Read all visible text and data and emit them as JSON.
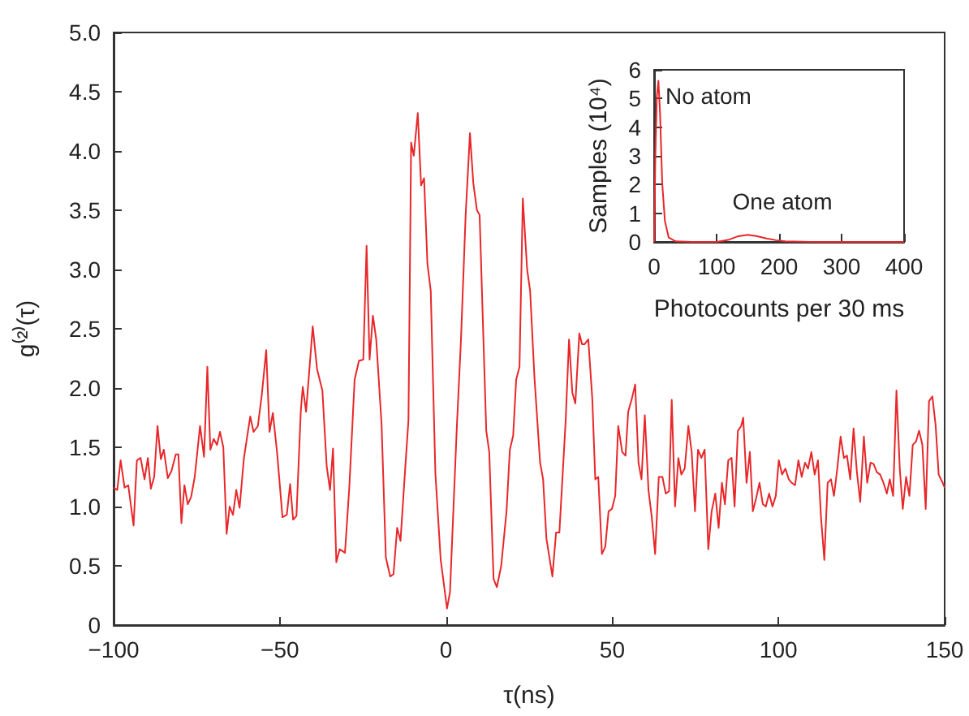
{
  "chart_data": [
    {
      "type": "line",
      "xlabel": "τ(ns)",
      "ylabel": "g⁽²⁾(τ)",
      "x": [
        -100,
        -98.9,
        -97.9,
        -96.7,
        -95.6,
        -94,
        -93,
        -91.9,
        -90.7,
        -89.7,
        -88.8,
        -87.8,
        -86.8,
        -85.8,
        -84.9,
        -83.7,
        -82.6,
        -81.3,
        -80.5,
        -79.6,
        -78.7,
        -77.7,
        -76.7,
        -75.6,
        -74,
        -72.8,
        -71.8,
        -70.9,
        -69.9,
        -68.9,
        -68,
        -67,
        -66,
        -65.1,
        -64.1,
        -63.1,
        -62.1,
        -60.8,
        -58.9,
        -57.9,
        -56.6,
        -55.4,
        -54.1,
        -53.1,
        -52.1,
        -50.8,
        -49.2,
        -47.9,
        -46.9,
        -46,
        -45,
        -43.7,
        -43.1,
        -42.1,
        -40.1,
        -38.8,
        -37.2,
        -35.9,
        -34.9,
        -34,
        -33,
        -32,
        -30.4,
        -29.1,
        -27.5,
        -26.2,
        -24.9,
        -23.9,
        -23,
        -22,
        -21,
        -19.4,
        -18.1,
        -16.8,
        -15.8,
        -14.7,
        -13.7,
        -12.4,
        -11.3,
        -10.5,
        -9.7,
        -8.5,
        -7.5,
        -6.6,
        -5.6,
        -4.6,
        -3.2,
        -1.6,
        0.3,
        1.2,
        3.2,
        4.5,
        5.9,
        7.2,
        8.2,
        9.3,
        10.1,
        12.1,
        13,
        14.3,
        15.3,
        16.6,
        18.2,
        19.2,
        20.2,
        21.1,
        22.1,
        23.1,
        24.4,
        25.3,
        26.6,
        28.3,
        29.2,
        30.2,
        32,
        33.1,
        34.1,
        35.1,
        36,
        37,
        38,
        38.9,
        40.1,
        40.9,
        41.7,
        42.8,
        44,
        44.9,
        45.8,
        46.9,
        47.9,
        48.9,
        49.9,
        50.9,
        51.8,
        53,
        54,
        54.8,
        55.9,
        56.9,
        57.9,
        58.8,
        59.8,
        60.9,
        61.9,
        62.9,
        64,
        65.1,
        66.1,
        67.1,
        67.9,
        68.9,
        69.9,
        70.8,
        71.8,
        72.9,
        73.9,
        74.9,
        75.8,
        76.8,
        77.8,
        78.9,
        79.9,
        81,
        82,
        83,
        83.9,
        84.9,
        85.9,
        86.8,
        87.8,
        88.8,
        89.4,
        90.4,
        91.4,
        92.3,
        93.3,
        94.3,
        95.3,
        96.2,
        97.2,
        98.2,
        99.2,
        100.1,
        101.1,
        102.1,
        103.1,
        104,
        105,
        106,
        107,
        108,
        108.9,
        109.9,
        110.9,
        111.9,
        112.8,
        113.8,
        114.8,
        115.8,
        116.7,
        117.7,
        118.7,
        119.7,
        120.6,
        121.6,
        122.6,
        123.6,
        124.6,
        125.7,
        126.7,
        127.7,
        128.6,
        129.6,
        130.6,
        131.6,
        132.6,
        133.5,
        134.5,
        135.5,
        136.5,
        137.4,
        138.4,
        139.4,
        140.4,
        141.4,
        142.3,
        143.3,
        144.3,
        145.3,
        146.3,
        147.3,
        148.2,
        149.4,
        150
      ],
      "series": [
        {
          "color": "#e8272a",
          "values": [
            1.16,
            1.14,
            1.39,
            1.16,
            1.18,
            0.84,
            1.39,
            1.41,
            1.23,
            1.41,
            1.15,
            1.25,
            1.68,
            1.4,
            1.48,
            1.24,
            1.3,
            1.44,
            1.44,
            0.86,
            1.18,
            1.02,
            1.08,
            1.25,
            1.68,
            1.42,
            2.18,
            1.48,
            1.57,
            1.52,
            1.63,
            1.5,
            0.77,
            1,
            0.93,
            1.14,
            0.99,
            1.41,
            1.76,
            1.63,
            1.68,
            1.95,
            2.32,
            1.63,
            1.79,
            1.45,
            0.91,
            0.93,
            1.19,
            0.89,
            0.92,
            1.8,
            2.01,
            1.8,
            2.52,
            2.16,
            1.98,
            1.34,
            1.14,
            1.49,
            0.53,
            0.64,
            0.61,
            1.16,
            2.07,
            2.23,
            2.24,
            3.2,
            2.24,
            2.61,
            2.41,
            1.7,
            0.57,
            0.41,
            0.43,
            0.82,
            0.71,
            1.27,
            1.73,
            4.07,
            3.96,
            4.32,
            3.71,
            3.77,
            3.05,
            2.82,
            1.28,
            0.55,
            0.14,
            0.28,
            1.64,
            2.41,
            3.46,
            4.15,
            3.73,
            3.5,
            3.46,
            1.64,
            1.46,
            0.39,
            0.32,
            0.5,
            0.96,
            1.48,
            1.6,
            2.07,
            2.18,
            3.6,
            3,
            2.82,
            2.09,
            1.37,
            1.23,
            0.73,
            0.41,
            0.78,
            0.78,
            1.28,
            1.73,
            2.41,
            1.96,
            1.87,
            2.46,
            2.37,
            2.37,
            2.41,
            1.91,
            1.23,
            1.25,
            0.6,
            0.66,
            0.96,
            0.98,
            1.09,
            1.68,
            1.46,
            1.43,
            1.8,
            1.91,
            2.03,
            1.37,
            1.23,
            1.77,
            1.14,
            0.91,
            0.6,
            1.25,
            1.25,
            1.11,
            1.13,
            1.9,
            1,
            1.41,
            1.27,
            1.32,
            1.68,
            1.46,
            0.96,
            1.48,
            1.41,
            1.48,
            0.64,
            0.96,
            1.11,
            0.82,
            1.2,
            1.02,
            1.39,
            1.41,
            1,
            1.64,
            1.68,
            1.75,
            1.2,
            1.46,
            0.96,
            1.07,
            1.2,
            1.02,
            1,
            1.11,
            1,
            1.09,
            1.39,
            1.27,
            1.32,
            1.23,
            1.2,
            1.18,
            1.39,
            1.25,
            1.37,
            1.32,
            1.46,
            1.27,
            1.39,
            0.91,
            0.55,
            1.2,
            1.23,
            1.09,
            1.32,
            1.59,
            1.41,
            1.43,
            1.23,
            1.66,
            1.29,
            1.04,
            1.59,
            1.2,
            1.37,
            1.36,
            1.29,
            1.27,
            1.2,
            1.11,
            1.23,
            1.09,
            1.98,
            1.32,
            0.98,
            1.25,
            1.09,
            1.52,
            1.55,
            1.64,
            1.52,
            0.98,
            1.89,
            1.93,
            1.68,
            1.27,
            1.2,
            1.16
          ]
        }
      ],
      "xlim": [
        -100,
        150
      ],
      "xticks": [
        {
          "value": -100,
          "label": "−100"
        },
        {
          "value": -50,
          "label": "−50"
        },
        0,
        50,
        100,
        150
      ],
      "ylim": [
        0,
        5
      ],
      "yticks": [
        0,
        0.5,
        {
          "value": 1,
          "label": "1.0"
        },
        1.5,
        {
          "value": 2,
          "label": "2.0"
        },
        2.5,
        {
          "value": 3,
          "label": "3.0"
        },
        3.5,
        {
          "value": 4,
          "label": "4.0"
        },
        4.5,
        {
          "value": 5,
          "label": "5.0"
        }
      ]
    },
    {
      "type": "line",
      "xlabel": "Photocounts per 30 ms",
      "ylabel": "Samples (10⁴)",
      "x": [
        0,
        2,
        4.3,
        6.9,
        9.5,
        13,
        17.3,
        23.4,
        34.6,
        60,
        100,
        120,
        135,
        150,
        165,
        180,
        195,
        210,
        250,
        300,
        400
      ],
      "series": [
        {
          "color": "#e8272a",
          "values": [
            0,
            3,
            5.06,
            5.62,
            4.49,
            2.04,
            0.72,
            0.15,
            0.02,
            0,
            0,
            0.08,
            0.2,
            0.25,
            0.2,
            0.12,
            0.06,
            0.02,
            0,
            0,
            0
          ]
        }
      ],
      "xlim": [
        0,
        400
      ],
      "xticks": [
        0,
        100,
        200,
        300,
        400
      ],
      "ylim": [
        0,
        6
      ],
      "yticks": [
        0,
        1,
        2,
        3,
        4,
        5,
        6
      ],
      "annotations": [
        "No atom",
        "One atom"
      ]
    }
  ]
}
